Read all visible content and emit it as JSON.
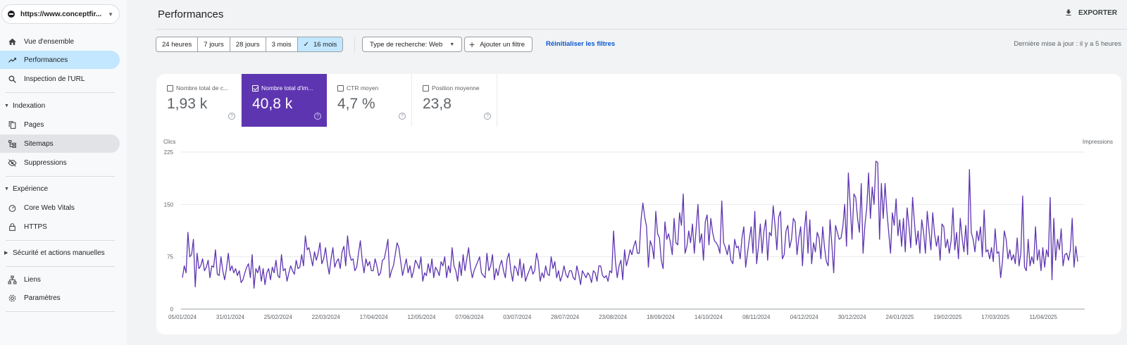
{
  "sidebar": {
    "property": "https://www.conceptfir...",
    "items": [
      {
        "label": "Vue d'ensemble",
        "icon": "home-icon"
      },
      {
        "label": "Performances",
        "icon": "trending-up-icon"
      },
      {
        "label": "Inspection de l'URL",
        "icon": "search-icon"
      },
      {
        "label": "Pages",
        "icon": "pages-icon"
      },
      {
        "label": "Sitemaps",
        "icon": "sitemap-icon"
      },
      {
        "label": "Suppressions",
        "icon": "eye-off-icon"
      },
      {
        "label": "Core Web Vitals",
        "icon": "gauge-icon"
      },
      {
        "label": "HTTPS",
        "icon": "lock-icon"
      },
      {
        "label": "Liens",
        "icon": "links-icon"
      },
      {
        "label": "Paramètres",
        "icon": "gear-icon"
      }
    ],
    "sections": {
      "indexation": "Indexation",
      "experience": "Expérience",
      "security": "Sécurité et actions manuelles"
    }
  },
  "header": {
    "title": "Performances",
    "export_label": "EXPORTER"
  },
  "filters": {
    "ranges": [
      "24 heures",
      "7 jours",
      "28 jours",
      "3 mois",
      "16 mois"
    ],
    "selected_range": "16 mois",
    "search_type": "Type de recherche: Web",
    "add_filter": "Ajouter un filtre",
    "reset": "Réinitialiser les filtres",
    "last_update": "Dernière mise à jour : il y a 5 heures"
  },
  "metrics": [
    {
      "label": "Nombre total de c...",
      "value": "1,93 k",
      "selected": false
    },
    {
      "label": "Nombre total d'im...",
      "value": "40,8 k",
      "selected": true
    },
    {
      "label": "CTR moyen",
      "value": "4,7 %",
      "selected": false
    },
    {
      "label": "Position moyenne",
      "value": "23,8",
      "selected": false
    }
  ],
  "colors": {
    "impressions": "#5e35b1",
    "active_nav": "#c2e7ff",
    "link": "#0b57d0"
  },
  "chart_data": {
    "type": "line",
    "ylabel_left": "Clics",
    "ylabel_right": "Impressions",
    "ylim": [
      0,
      225
    ],
    "yticks": [
      "0",
      "75",
      "150",
      "225"
    ],
    "xticks": [
      "05/01/2024",
      "31/01/2024",
      "25/02/2024",
      "22/03/2024",
      "17/04/2024",
      "12/05/2024",
      "07/06/2024",
      "03/07/2024",
      "28/07/2024",
      "23/08/2024",
      "18/09/2024",
      "14/10/2024",
      "08/11/2024",
      "04/12/2024",
      "30/12/2024",
      "24/01/2025",
      "19/02/2025",
      "17/03/2025",
      "11/04/2025"
    ],
    "grid": true,
    "series": [
      {
        "name": "",
        "color": "#5e35b1",
        "values": [
          45,
          62,
          52,
          110,
          75,
          78,
          100,
          32,
          80,
          58,
          62,
          72,
          55,
          60,
          70,
          45,
          62,
          60,
          85,
          50,
          48,
          75,
          55,
          42,
          58,
          80,
          55,
          62,
          52,
          58,
          48,
          55,
          38,
          42,
          52,
          60,
          65,
          45,
          78,
          30,
          58,
          52,
          62,
          40,
          58,
          35,
          52,
          58,
          42,
          60,
          52,
          70,
          48,
          45,
          78,
          55,
          58,
          40,
          52,
          62,
          55,
          50,
          70,
          58,
          60,
          78,
          62,
          105,
          85,
          88,
          75,
          62,
          82,
          70,
          80,
          95,
          65,
          72,
          88,
          65,
          50,
          72,
          88,
          60,
          68,
          72,
          58,
          82,
          90,
          62,
          105,
          80,
          70,
          72,
          55,
          60,
          80,
          98,
          70,
          52,
          72,
          62,
          68,
          55,
          55,
          72,
          62,
          48,
          52,
          70,
          72,
          85,
          100,
          45,
          55,
          62,
          78,
          95,
          88,
          68,
          48,
          60,
          72,
          52,
          62,
          45,
          55,
          70,
          65,
          58,
          75,
          40,
          52,
          48,
          65,
          52,
          72,
          45,
          60,
          55,
          48,
          68,
          62,
          75,
          45,
          62,
          52,
          88,
          62,
          55,
          40,
          68,
          48,
          78,
          55,
          72,
          88,
          60,
          45,
          55,
          62,
          68,
          75,
          52,
          48,
          45,
          80,
          55,
          62,
          78,
          42,
          58,
          48,
          62,
          70,
          55,
          45,
          72,
          80,
          55,
          40,
          62,
          58,
          48,
          72,
          45,
          65,
          40,
          48,
          55,
          62,
          50,
          55,
          80,
          68,
          40,
          52,
          45,
          62,
          50,
          48,
          75,
          58,
          68,
          45,
          55,
          40,
          48,
          62,
          50,
          45,
          55,
          55,
          45,
          42,
          62,
          50,
          35,
          55,
          50,
          45,
          52,
          48,
          38,
          55,
          52,
          40,
          62,
          62,
          48,
          45,
          48,
          40,
          55,
          52,
          112,
          68,
          45,
          62,
          70,
          42,
          85,
          62,
          72,
          85,
          78,
          90,
          98,
          80,
          80,
          128,
          152,
          132,
          118,
          60,
          98,
          90,
          72,
          140,
          108,
          102,
          70,
          58,
          125,
          100,
          108,
          95,
          78,
          130,
          95,
          92,
          138,
          120,
          165,
          80,
          90,
          112,
          95,
          122,
          80,
          115,
          150,
          95,
          108,
          70,
          125,
          135,
          92,
          130,
          110,
          98,
          95,
          90,
          80,
          155,
          95,
          88,
          78,
          92,
          70,
          65,
          100,
          88,
          90,
          72,
          102,
          118,
          60,
          80,
          100,
          118,
          80,
          140,
          65,
          90,
          122,
          80,
          112,
          128,
          70,
          110,
          105,
          148,
          120,
          85,
          132,
          140,
          72,
          78,
          112,
          120,
          88,
          100,
          130,
          125,
          78,
          102,
          118,
          62,
          112,
          140,
          80,
          128,
          65,
          95,
          82,
          110,
          102,
          72,
          118,
          88,
          68,
          62,
          128,
          92,
          52,
          120,
          110,
          100,
          102,
          118,
          150,
          90,
          195,
          150,
          100,
          165,
          160,
          130,
          110,
          180,
          80,
          120,
          145,
          195,
          130,
          175,
          150,
          212,
          210,
          100,
          180,
          130,
          180,
          140,
          110,
          80,
          138,
          120,
          158,
          105,
          128,
          90,
          130,
          82,
          145,
          120,
          88,
          160,
          125,
          92,
          112,
          80,
          128,
          110,
          80,
          140,
          112,
          85,
          138,
          108,
          90,
          105,
          70,
          122,
          118,
          88,
          100,
          80,
          98,
          145,
          85,
          110,
          72,
          130,
          102,
          82,
          120,
          78,
          200,
          110,
          100,
          82,
          112,
          98,
          118,
          75,
          142,
          82,
          85,
          72,
          88,
          68,
          115,
          80,
          82,
          45,
          68,
          112,
          100,
          72,
          85,
          70,
          78,
          65,
          102,
          62,
          80,
          162,
          60,
          55,
          100,
          62,
          75,
          65,
          118,
          70,
          85,
          55,
          88,
          60,
          85,
          75,
          160,
          42,
          130,
          70,
          100,
          85,
          115,
          62,
          78,
          80,
          70,
          85,
          130,
          60,
          90,
          68
        ]
      }
    ]
  }
}
